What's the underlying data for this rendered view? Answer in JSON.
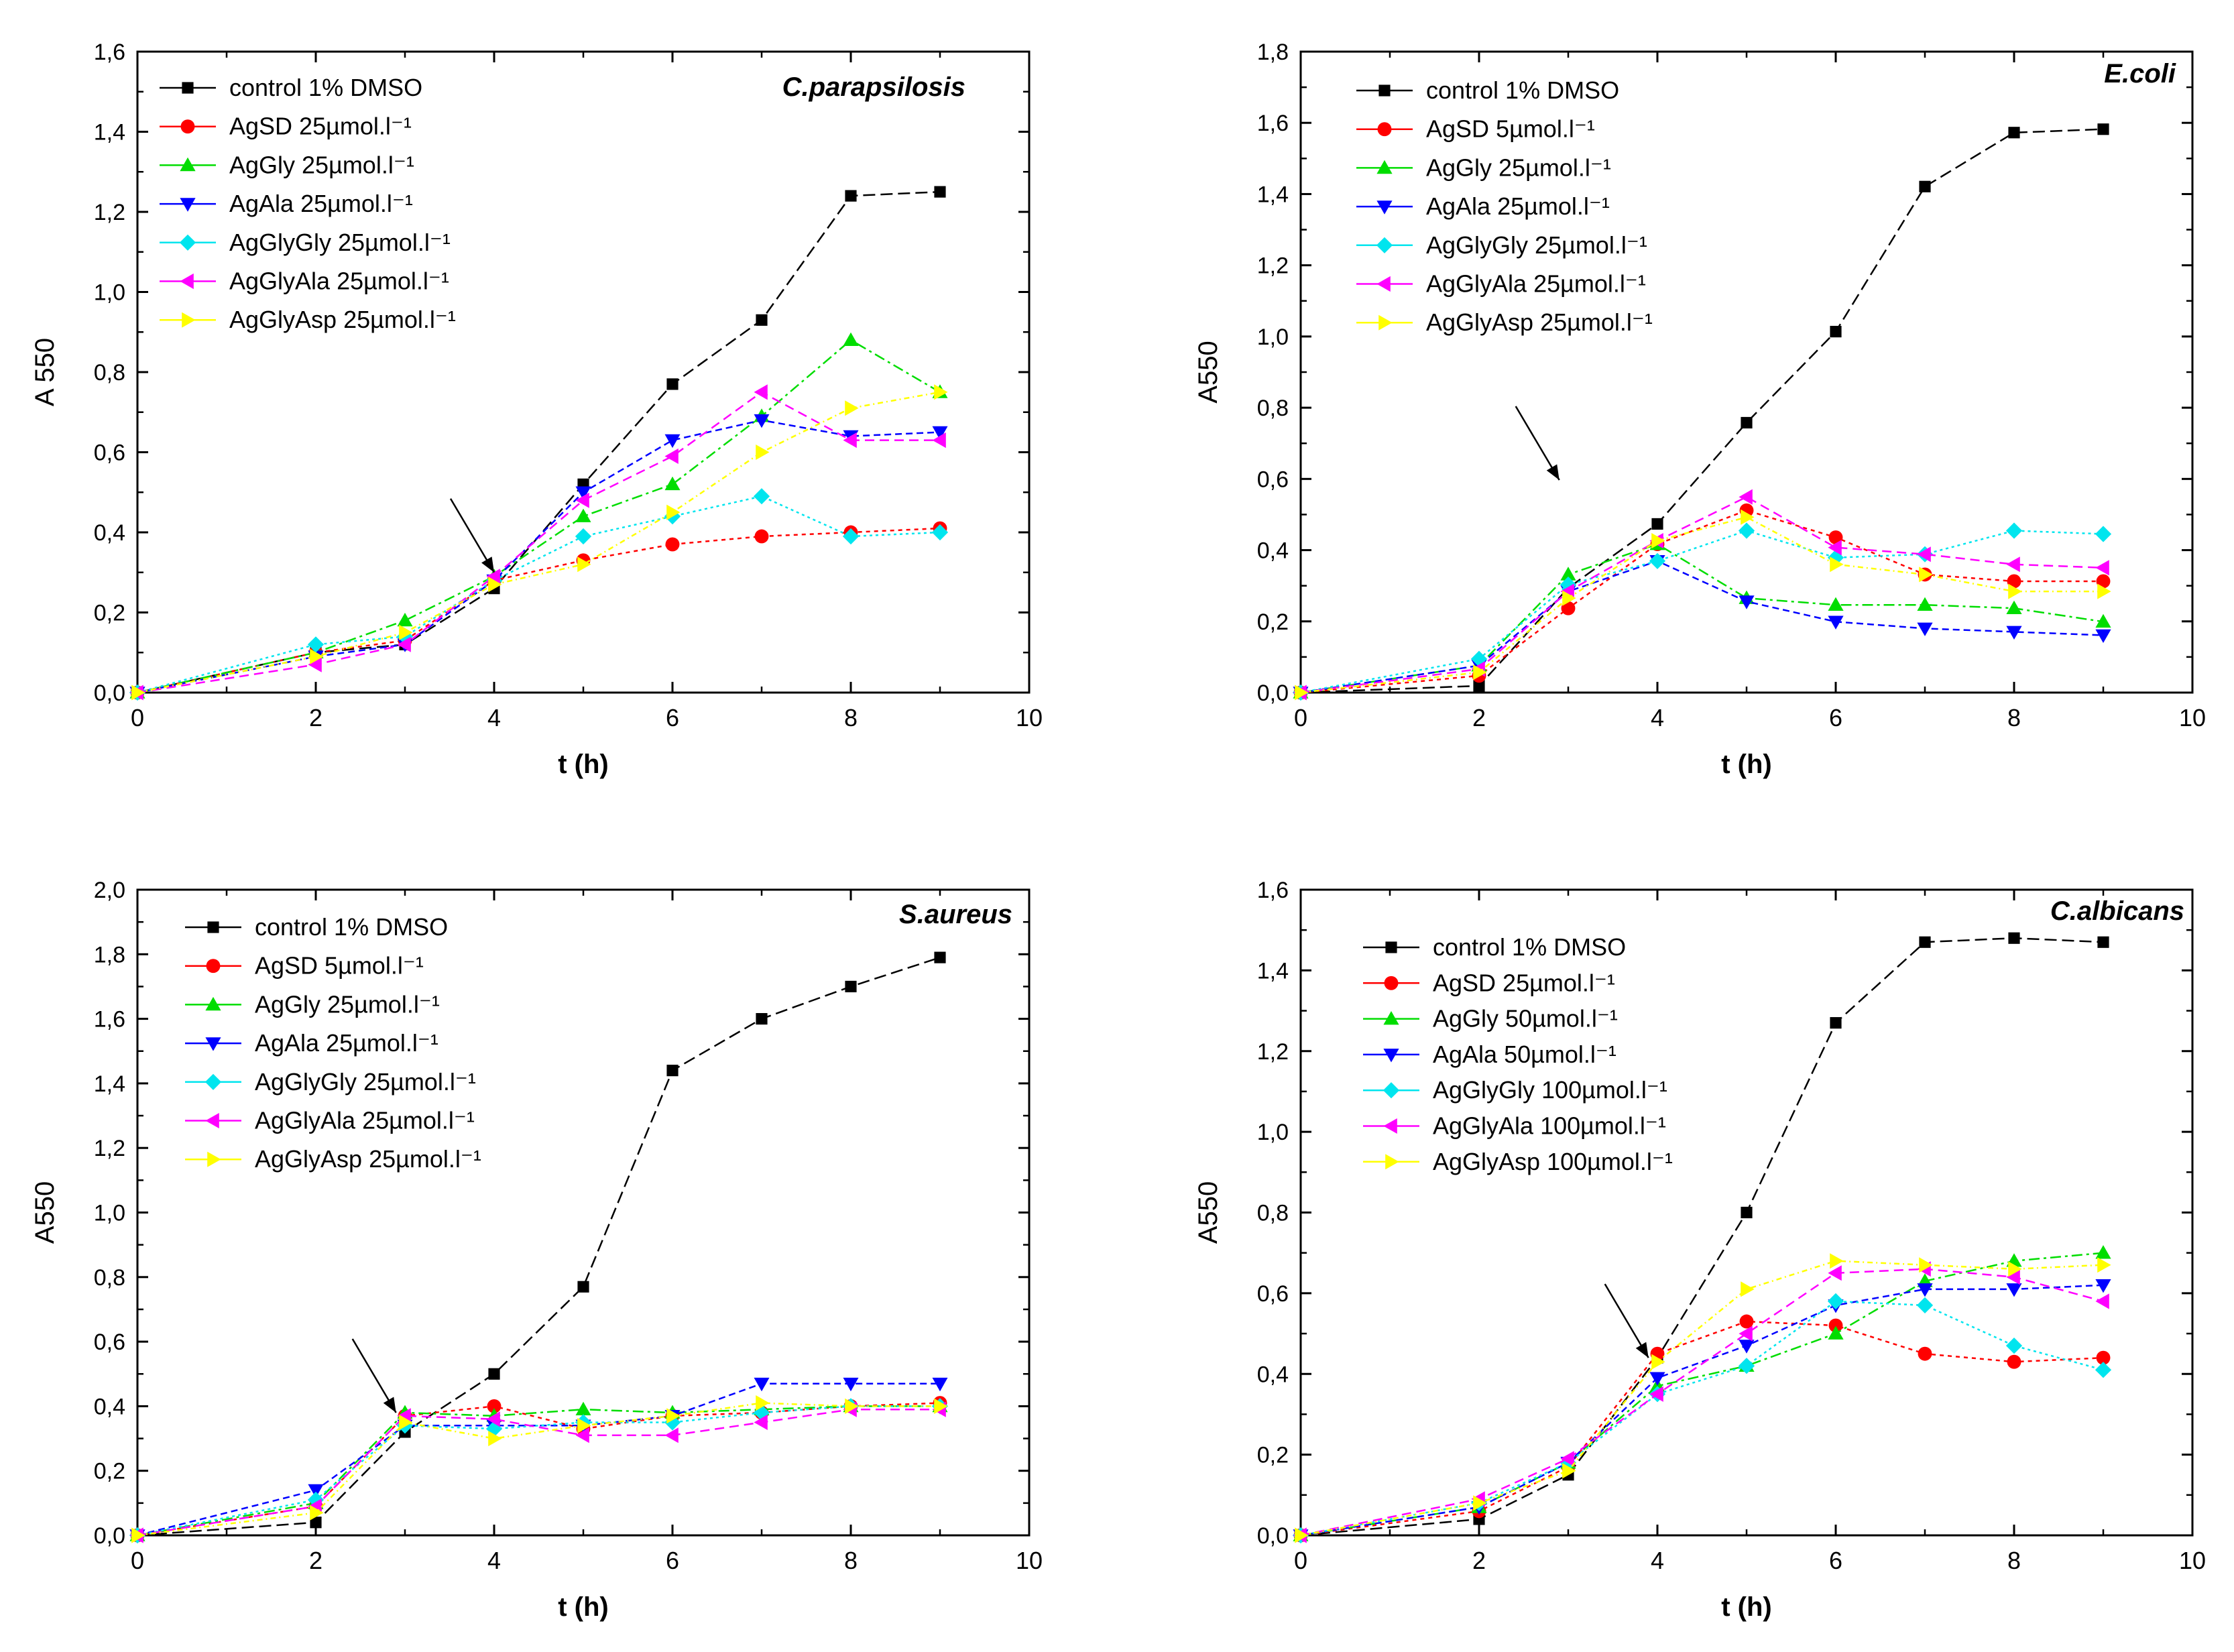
{
  "chart_data": [
    {
      "type": "line",
      "title": "C.parapsilosis",
      "xlabel": "t (h)",
      "ylabel": "A 550",
      "xlim": [
        0,
        10
      ],
      "ylim": [
        0,
        1.6
      ],
      "xticks": [
        "0",
        "2",
        "4",
        "6",
        "8",
        "10"
      ],
      "yticks": [
        "0,0",
        "0,2",
        "0,4",
        "0,6",
        "0,8",
        "1,0",
        "1,2",
        "1,4",
        "1,6"
      ],
      "legend_position": "top-left",
      "annotation": "arrow",
      "arrow_at": {
        "x": 4,
        "y": 0.3
      },
      "series": [
        {
          "name": "control 1% DMSO",
          "conc": "",
          "color": "#000000",
          "marker": "square",
          "x": [
            0,
            2,
            3,
            4,
            5,
            6,
            7,
            8,
            9
          ],
          "y": [
            0,
            0.1,
            0.12,
            0.26,
            0.52,
            0.77,
            0.93,
            1.24,
            1.25
          ]
        },
        {
          "name": "AgSD 25",
          "conc": "µmol.l⁻¹",
          "color": "#ff0000",
          "marker": "circle",
          "x": [
            0,
            2,
            3,
            4,
            5,
            6,
            7,
            8,
            9
          ],
          "y": [
            0,
            0.1,
            0.13,
            0.28,
            0.33,
            0.37,
            0.39,
            0.4,
            0.41
          ]
        },
        {
          "name": "AgGly 25",
          "conc": "µmol.l⁻¹",
          "color": "#00dd00",
          "marker": "triangle-up",
          "x": [
            0,
            2,
            3,
            4,
            5,
            6,
            7,
            8,
            9
          ],
          "y": [
            0,
            0.1,
            0.18,
            0.29,
            0.44,
            0.52,
            0.69,
            0.88,
            0.75
          ]
        },
        {
          "name": "AgAla 25",
          "conc": "µmol.l⁻¹",
          "color": "#0000ff",
          "marker": "triangle-down",
          "x": [
            0,
            2,
            3,
            4,
            5,
            6,
            7,
            8,
            9
          ],
          "y": [
            0,
            0.09,
            0.12,
            0.28,
            0.5,
            0.63,
            0.68,
            0.64,
            0.65
          ]
        },
        {
          "name": "AgGlyGly 25",
          "conc": "µmol.l⁻¹",
          "color": "#00e5ee",
          "marker": "diamond",
          "x": [
            0,
            2,
            3,
            4,
            5,
            6,
            7,
            8,
            9
          ],
          "y": [
            0,
            0.12,
            0.14,
            0.28,
            0.39,
            0.44,
            0.49,
            0.39,
            0.4
          ]
        },
        {
          "name": "AgGlyAla 25",
          "conc": "µmol.l⁻¹",
          "color": "#ff00ff",
          "marker": "triangle-left",
          "x": [
            0,
            2,
            3,
            4,
            5,
            6,
            7,
            8,
            9
          ],
          "y": [
            0,
            0.07,
            0.12,
            0.29,
            0.48,
            0.59,
            0.75,
            0.63,
            0.63
          ]
        },
        {
          "name": "AgGlyAsp 25",
          "conc": "µmol.l⁻¹",
          "color": "#ffff00",
          "marker": "triangle-right",
          "x": [
            0,
            2,
            3,
            4,
            5,
            6,
            7,
            8,
            9
          ],
          "y": [
            0,
            0.09,
            0.15,
            0.27,
            0.32,
            0.45,
            0.6,
            0.71,
            0.75
          ]
        }
      ]
    },
    {
      "type": "line",
      "title": "E.coli",
      "xlabel": "t (h)",
      "ylabel": "A550",
      "xlim": [
        0,
        10
      ],
      "ylim": [
        0,
        1.9
      ],
      "xticks": [
        "0",
        "2",
        "4",
        "6",
        "8",
        "10"
      ],
      "yticks": [
        "0,0",
        "0,2",
        "0,4",
        "0,6",
        "0,8",
        "1,0",
        "1,2",
        "1,4",
        "1,6",
        "1,8"
      ],
      "legend_position": "top-left",
      "annotation": "arrow",
      "arrow_at": {
        "x": 2.9,
        "y": 0.63
      },
      "series": [
        {
          "name": "control 1% DMSO",
          "conc": "",
          "color": "#000000",
          "marker": "square",
          "x": [
            0,
            2,
            3,
            4,
            5,
            6,
            7,
            8,
            9
          ],
          "y": [
            0,
            0.02,
            0.31,
            0.5,
            0.8,
            1.07,
            1.5,
            1.66,
            1.67
          ]
        },
        {
          "name": "AgSD 5",
          "conc": "µmol.l⁻¹",
          "color": "#ff0000",
          "marker": "circle",
          "x": [
            0,
            2,
            3,
            4,
            5,
            6,
            7,
            8,
            9
          ],
          "y": [
            0,
            0.05,
            0.25,
            0.44,
            0.54,
            0.46,
            0.35,
            0.33,
            0.33
          ]
        },
        {
          "name": "AgGly 25",
          "conc": "µmol.l⁻¹",
          "color": "#00dd00",
          "marker": "triangle-up",
          "x": [
            0,
            2,
            3,
            4,
            5,
            6,
            7,
            8,
            9
          ],
          "y": [
            0,
            0.08,
            0.35,
            0.44,
            0.28,
            0.26,
            0.26,
            0.25,
            0.21
          ]
        },
        {
          "name": "AgAla 25",
          "conc": "µmol.l⁻¹",
          "color": "#0000ff",
          "marker": "triangle-down",
          "x": [
            0,
            2,
            3,
            4,
            5,
            6,
            7,
            8,
            9
          ],
          "y": [
            0,
            0.08,
            0.3,
            0.39,
            0.27,
            0.21,
            0.19,
            0.18,
            0.17
          ]
        },
        {
          "name": "AgGlyGly 25",
          "conc": "µmol.l⁻¹",
          "color": "#00e5ee",
          "marker": "diamond",
          "x": [
            0,
            2,
            3,
            4,
            5,
            6,
            7,
            8,
            9
          ],
          "y": [
            0,
            0.1,
            0.32,
            0.39,
            0.48,
            0.4,
            0.41,
            0.48,
            0.47
          ]
        },
        {
          "name": "AgGlyAla 25",
          "conc": "µmol.l⁻¹",
          "color": "#ff00ff",
          "marker": "triangle-left",
          "x": [
            0,
            2,
            3,
            4,
            5,
            6,
            7,
            8,
            9
          ],
          "y": [
            0,
            0.07,
            0.3,
            0.45,
            0.58,
            0.43,
            0.41,
            0.38,
            0.37
          ]
        },
        {
          "name": "AgGlyAsp 25",
          "conc": "µmol.l⁻¹",
          "color": "#ffff00",
          "marker": "triangle-right",
          "x": [
            0,
            2,
            3,
            4,
            5,
            6,
            7,
            8,
            9
          ],
          "y": [
            0,
            0.06,
            0.28,
            0.45,
            0.52,
            0.38,
            0.35,
            0.3,
            0.3
          ]
        }
      ]
    },
    {
      "type": "line",
      "title": "S.aureus",
      "xlabel": "t (h)",
      "ylabel": "A550",
      "xlim": [
        0,
        10
      ],
      "ylim": [
        0,
        2.0
      ],
      "xticks": [
        "0",
        "2",
        "4",
        "6",
        "8",
        "10"
      ],
      "yticks": [
        "0,0",
        "0,2",
        "0,4",
        "0,6",
        "0,8",
        "1,0",
        "1,2",
        "1,4",
        "1,6",
        "1,8",
        "2,0"
      ],
      "legend_position": "top-left",
      "annotation": "arrow",
      "arrow_at": {
        "x": 2.9,
        "y": 0.38
      },
      "series": [
        {
          "name": "control 1% DMSO",
          "conc": "",
          "color": "#000000",
          "marker": "square",
          "x": [
            0,
            2,
            3,
            4,
            5,
            6,
            7,
            8,
            9
          ],
          "y": [
            0,
            0.04,
            0.32,
            0.5,
            0.77,
            1.44,
            1.6,
            1.7,
            1.79
          ]
        },
        {
          "name": "AgSD 5",
          "conc": "µmol.l⁻¹",
          "color": "#ff0000",
          "marker": "circle",
          "x": [
            0,
            2,
            3,
            4,
            5,
            6,
            7,
            8,
            9
          ],
          "y": [
            0,
            0.09,
            0.37,
            0.4,
            0.33,
            0.37,
            0.38,
            0.4,
            0.41
          ]
        },
        {
          "name": "AgGly 25",
          "conc": "µmol.l⁻¹",
          "color": "#00dd00",
          "marker": "triangle-up",
          "x": [
            0,
            2,
            3,
            4,
            5,
            6,
            7,
            8,
            9
          ],
          "y": [
            0,
            0.1,
            0.38,
            0.37,
            0.39,
            0.38,
            0.39,
            0.4,
            0.4
          ]
        },
        {
          "name": "AgAla 25",
          "conc": "µmol.l⁻¹",
          "color": "#0000ff",
          "marker": "triangle-down",
          "x": [
            0,
            2,
            3,
            4,
            5,
            6,
            7,
            8,
            9
          ],
          "y": [
            0,
            0.14,
            0.34,
            0.34,
            0.34,
            0.37,
            0.47,
            0.47,
            0.47
          ]
        },
        {
          "name": "AgGlyGly 25",
          "conc": "µmol.l⁻¹",
          "color": "#00e5ee",
          "marker": "diamond",
          "x": [
            0,
            2,
            3,
            4,
            5,
            6,
            7,
            8,
            9
          ],
          "y": [
            0,
            0.11,
            0.34,
            0.33,
            0.35,
            0.35,
            0.38,
            0.4,
            0.4
          ]
        },
        {
          "name": "AgGlyAla 25",
          "conc": "µmol.l⁻¹",
          "color": "#ff00ff",
          "marker": "triangle-left",
          "x": [
            0,
            2,
            3,
            4,
            5,
            6,
            7,
            8,
            9
          ],
          "y": [
            0,
            0.09,
            0.37,
            0.36,
            0.31,
            0.31,
            0.35,
            0.39,
            0.39
          ]
        },
        {
          "name": "AgGlyAsp 25",
          "conc": "µmol.l⁻¹",
          "color": "#ffff00",
          "marker": "triangle-right",
          "x": [
            0,
            2,
            3,
            4,
            5,
            6,
            7,
            8,
            9
          ],
          "y": [
            0,
            0.07,
            0.35,
            0.3,
            0.34,
            0.37,
            0.41,
            0.4,
            0.4
          ]
        }
      ]
    },
    {
      "type": "line",
      "title": "C.albicans",
      "xlabel": "t (h)",
      "ylabel": "A550",
      "xlim": [
        0,
        10
      ],
      "ylim": [
        0,
        1.6
      ],
      "xticks": [
        "0",
        "2",
        "4",
        "6",
        "8",
        "10"
      ],
      "yticks": [
        "0,0",
        "0,2",
        "0,4",
        "0,6",
        "0,8",
        "1,0",
        "1,2",
        "1,4",
        "1,6"
      ],
      "legend_position": "top-left",
      "annotation": "arrow",
      "arrow_at": {
        "x": 3.9,
        "y": 0.44
      },
      "series": [
        {
          "name": "control 1% DMSO",
          "conc": "",
          "color": "#000000",
          "marker": "square",
          "x": [
            0,
            2,
            3,
            4,
            5,
            6,
            7,
            8,
            9
          ],
          "y": [
            0,
            0.04,
            0.15,
            0.44,
            0.8,
            1.27,
            1.47,
            1.48,
            1.47
          ]
        },
        {
          "name": "AgSD 25",
          "conc": "µmol.l⁻¹",
          "color": "#ff0000",
          "marker": "circle",
          "x": [
            0,
            2,
            3,
            4,
            5,
            6,
            7,
            8,
            9
          ],
          "y": [
            0,
            0.06,
            0.17,
            0.45,
            0.53,
            0.52,
            0.45,
            0.43,
            0.44
          ]
        },
        {
          "name": "AgGly 50",
          "conc": "µmol.l⁻¹",
          "color": "#00dd00",
          "marker": "triangle-up",
          "x": [
            0,
            2,
            3,
            4,
            5,
            6,
            7,
            8,
            9
          ],
          "y": [
            0,
            0.07,
            0.18,
            0.37,
            0.42,
            0.5,
            0.63,
            0.68,
            0.7
          ]
        },
        {
          "name": "AgAla 50",
          "conc": "µmol.l⁻¹",
          "color": "#0000ff",
          "marker": "triangle-down",
          "x": [
            0,
            2,
            3,
            4,
            5,
            6,
            7,
            8,
            9
          ],
          "y": [
            0,
            0.07,
            0.18,
            0.39,
            0.47,
            0.57,
            0.61,
            0.61,
            0.62
          ]
        },
        {
          "name": "AgGlyGly 100",
          "conc": "µmol.l⁻¹",
          "color": "#00e5ee",
          "marker": "diamond",
          "x": [
            0,
            2,
            3,
            4,
            5,
            6,
            7,
            8,
            9
          ],
          "y": [
            0,
            0.08,
            0.18,
            0.35,
            0.42,
            0.58,
            0.57,
            0.47,
            0.41
          ]
        },
        {
          "name": "AgGlyAla 100",
          "conc": "µmol.l⁻¹",
          "color": "#ff00ff",
          "marker": "triangle-left",
          "x": [
            0,
            2,
            3,
            4,
            5,
            6,
            7,
            8,
            9
          ],
          "y": [
            0,
            0.09,
            0.19,
            0.35,
            0.5,
            0.65,
            0.66,
            0.64,
            0.58
          ]
        },
        {
          "name": "AgGlyAsp 100",
          "conc": "µmol.l⁻¹",
          "color": "#ffff00",
          "marker": "triangle-right",
          "x": [
            0,
            2,
            3,
            4,
            5,
            6,
            7,
            8,
            9
          ],
          "y": [
            0,
            0.08,
            0.16,
            0.43,
            0.61,
            0.68,
            0.67,
            0.66,
            0.67
          ]
        }
      ]
    }
  ]
}
